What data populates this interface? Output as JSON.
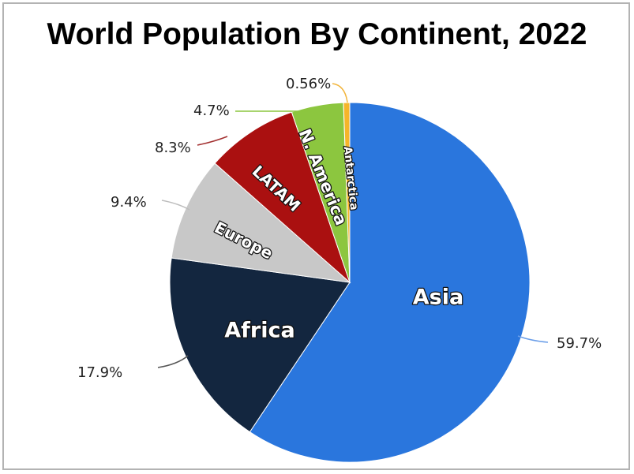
{
  "chart_data": {
    "type": "pie",
    "title": "World Population By Continent, 2022",
    "slices": [
      {
        "name": "Asia",
        "value": 59.7,
        "label": "59.7%",
        "color": "#2a76dd"
      },
      {
        "name": "Africa",
        "value": 17.9,
        "label": "17.9%",
        "color": "#13263f"
      },
      {
        "name": "Europe",
        "value": 9.4,
        "label": "9.4%",
        "color": "#c8c8c8"
      },
      {
        "name": "LATAM",
        "value": 8.3,
        "label": "8.3%",
        "color": "#aa1010"
      },
      {
        "name": "N. America",
        "value": 4.7,
        "label": "4.7%",
        "color": "#8cc63f"
      },
      {
        "name": "Antarctica",
        "value": 0.56,
        "label": "0.56%",
        "color": "#f5b52a"
      }
    ],
    "leader_line_colors": [
      "#6b9ee8",
      "#555555",
      "#bdbdbd",
      "#a33030",
      "#8cc63f",
      "#f2b43a"
    ]
  }
}
